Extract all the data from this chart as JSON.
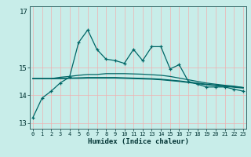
{
  "xlabel": "Humidex (Indice chaleur)",
  "ylabel": "",
  "bg_color": "#c8ede9",
  "grid_color": "#f0b0b0",
  "line_color": "#006666",
  "x": [
    0,
    1,
    2,
    3,
    4,
    5,
    6,
    7,
    8,
    9,
    10,
    11,
    12,
    13,
    14,
    15,
    16,
    17,
    18,
    19,
    20,
    21,
    22,
    23
  ],
  "line1": [
    13.2,
    13.9,
    14.15,
    14.45,
    14.65,
    15.9,
    16.35,
    15.65,
    15.3,
    15.25,
    15.15,
    15.65,
    15.25,
    15.75,
    15.75,
    14.95,
    15.1,
    14.5,
    14.4,
    14.3,
    14.3,
    14.3,
    14.22,
    14.15
  ],
  "line2": [
    14.6,
    14.6,
    14.6,
    14.65,
    14.68,
    14.72,
    14.75,
    14.75,
    14.78,
    14.78,
    14.78,
    14.77,
    14.76,
    14.74,
    14.72,
    14.68,
    14.62,
    14.56,
    14.5,
    14.44,
    14.4,
    14.36,
    14.33,
    14.28
  ],
  "line3": [
    14.6,
    14.6,
    14.6,
    14.61,
    14.62,
    14.63,
    14.64,
    14.64,
    14.64,
    14.64,
    14.63,
    14.62,
    14.61,
    14.6,
    14.58,
    14.55,
    14.52,
    14.48,
    14.44,
    14.4,
    14.37,
    14.34,
    14.31,
    14.28
  ],
  "line4": [
    14.6,
    14.6,
    14.6,
    14.6,
    14.61,
    14.61,
    14.62,
    14.62,
    14.62,
    14.62,
    14.61,
    14.6,
    14.59,
    14.58,
    14.56,
    14.53,
    14.5,
    14.46,
    14.42,
    14.38,
    14.35,
    14.32,
    14.29,
    14.26
  ],
  "ylim": [
    12.8,
    17.2
  ],
  "xlim": [
    -0.3,
    23.3
  ],
  "yticks": [
    13,
    14,
    15
  ],
  "ytick_label_offset": 17,
  "xticks": [
    0,
    1,
    2,
    3,
    4,
    5,
    6,
    7,
    8,
    9,
    10,
    11,
    12,
    13,
    14,
    15,
    16,
    17,
    18,
    19,
    20,
    21,
    22,
    23
  ]
}
